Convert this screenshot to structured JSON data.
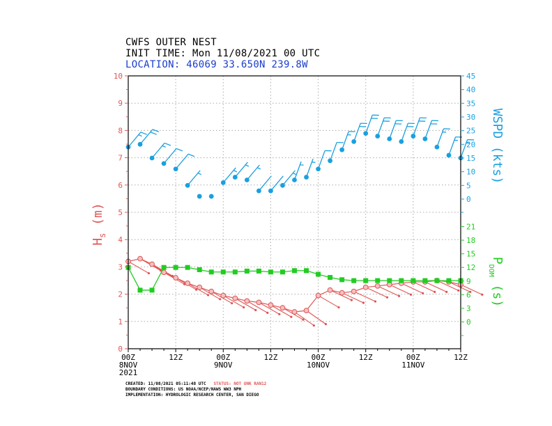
{
  "header": {
    "line1": "CWFS OUTER NEST",
    "line2": "INIT TIME: Mon 11/08/2021 00 UTC",
    "location_label": "LOCATION:",
    "location_values": "46069 33.650N 239.8W"
  },
  "footer": {
    "created": "CREATED: 11/08/2021 05:11:48 UTC",
    "status": "STATUS: NOT UNK RAN12",
    "boundary": "BOUNDARY CONDITIONS: US NOAA/NCEP/NAWS WW3 NPH",
    "implementation": "IMPLEMENTATION: HYDROLOGIC RESEARCH CENTER, SAN DIEGO"
  },
  "colors": {
    "hs": "#e05555",
    "wspd": "#1aa0e0",
    "pdom": "#22cc22",
    "location": "#1a3dcc",
    "grid": "#aaaaaa"
  },
  "chart_data": {
    "type": "line",
    "x_unit": "hours since 00Z 8NOV 2021",
    "xlim": [
      0,
      84
    ],
    "x_ticks": [
      {
        "x": 0,
        "label": "00Z",
        "date": "8NOV",
        "year": "2021"
      },
      {
        "x": 12,
        "label": "12Z"
      },
      {
        "x": 24,
        "label": "00Z",
        "date": "9NOV"
      },
      {
        "x": 36,
        "label": "12Z"
      },
      {
        "x": 48,
        "label": "00Z",
        "date": "10NOV"
      },
      {
        "x": 60,
        "label": "12Z"
      },
      {
        "x": 72,
        "label": "00Z",
        "date": "11NOV"
      },
      {
        "x": 84,
        "label": "12Z"
      }
    ],
    "left_axis": {
      "label": "Hs (m)",
      "ylim": [
        0,
        10
      ],
      "ticks": [
        "0",
        "1",
        "2",
        "3",
        "4",
        "5",
        "6",
        "7",
        "8",
        "9",
        "10"
      ]
    },
    "right_axis_wspd": {
      "label": "WSPD (kts)",
      "ticks": [
        "0",
        "5",
        "10",
        "15",
        "20",
        "25",
        "30",
        "35",
        "40",
        "45"
      ]
    },
    "right_axis_pdom": {
      "label": "P_DOM (s)",
      "ticks": [
        "0",
        "3",
        "6",
        "9",
        "12",
        "15",
        "18",
        "21"
      ]
    },
    "x": [
      0,
      3,
      6,
      9,
      12,
      15,
      18,
      21,
      24,
      27,
      30,
      33,
      36,
      39,
      42,
      45,
      48,
      51,
      54,
      57,
      60,
      63,
      66,
      69,
      72,
      75,
      78,
      81,
      84
    ],
    "series": [
      {
        "name": "Hs",
        "axis": "left",
        "unit": "m",
        "values": [
          3.2,
          3.3,
          3.1,
          2.8,
          2.6,
          2.4,
          2.25,
          2.1,
          1.95,
          1.85,
          1.75,
          1.7,
          1.6,
          1.5,
          1.35,
          1.4,
          1.95,
          2.15,
          2.05,
          2.1,
          2.25,
          2.3,
          2.35,
          2.4,
          2.45,
          2.45,
          2.5,
          2.45,
          2.35
        ],
        "wave_dir_deg": [
          300,
          300,
          300,
          300,
          300,
          300,
          300,
          300,
          300,
          300,
          300,
          300,
          300,
          300,
          305,
          305,
          300,
          295,
          295,
          295,
          295,
          295,
          295,
          295,
          295,
          295,
          295,
          295,
          295
        ]
      },
      {
        "name": "WSPD",
        "axis": "right",
        "unit": "kts",
        "values": [
          19,
          20,
          15,
          13,
          11,
          5,
          1,
          1,
          6,
          8,
          7,
          3,
          3,
          5,
          7,
          8,
          11,
          14,
          18,
          21,
          24,
          23,
          22,
          21,
          23,
          22,
          19,
          16,
          15
        ]
      },
      {
        "name": "PDOM",
        "axis": "right",
        "unit": "s",
        "values": [
          12,
          7,
          7,
          12,
          12,
          12,
          11.5,
          11,
          11,
          11,
          11.2,
          11.2,
          11,
          11,
          11.3,
          11.3,
          10.5,
          9.8,
          9.3,
          9.1,
          9.1,
          9.1,
          9.1,
          9.1,
          9.1,
          9.1,
          9.1,
          9.1,
          9.1
        ]
      }
    ]
  }
}
